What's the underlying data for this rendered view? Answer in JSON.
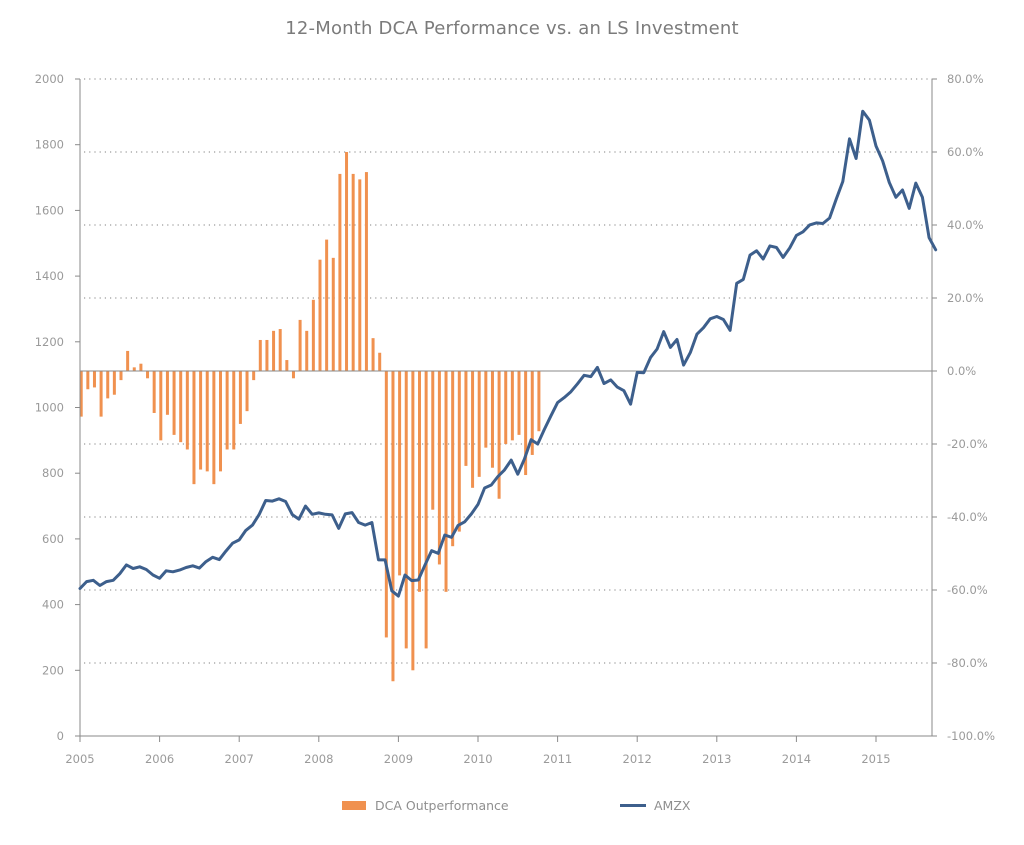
{
  "chart_data": {
    "type": "bar+line",
    "title": "12-Month DCA Performance vs. an LS Investment",
    "xlabel": "",
    "ylabel_left": "",
    "ylabel_right": "",
    "x_ticks": [
      "2005",
      "2006",
      "2007",
      "2008",
      "2009",
      "2010",
      "2011",
      "2012",
      "2013",
      "2014",
      "2015"
    ],
    "x_range": [
      2005.0,
      2015.75
    ],
    "left_axis": {
      "range": [
        0,
        2000
      ],
      "ticks": [
        "0",
        "200",
        "400",
        "600",
        "800",
        "1000",
        "1200",
        "1400",
        "1600",
        "1800",
        "2000"
      ]
    },
    "right_axis": {
      "range": [
        -100,
        80
      ],
      "ticks": [
        "-100.0%",
        "-80.0%",
        "-60.0%",
        "-40.0%",
        "-20.0%",
        "0.0%",
        "20.0%",
        "40.0%",
        "60.0%",
        "80.0%"
      ]
    },
    "grid": "horizontal dotted, aligned to right axis",
    "legend_position": "bottom-center",
    "colors": {
      "bars": "#f0914f",
      "line": "#3d5f8c",
      "axis": "#8a8a8a",
      "grid": "#9a9a9a"
    },
    "series": [
      {
        "name": "DCA Outperformance",
        "type": "bar",
        "axis": "right",
        "start": 2005.0,
        "step_months": 1,
        "values": [
          -12.5,
          -5,
          -4.5,
          -12.5,
          -7.5,
          -6.5,
          -2.5,
          5.5,
          1,
          2,
          -2,
          -11.5,
          -19,
          -12,
          -17.5,
          -19.5,
          -21.5,
          -31,
          -27,
          -27.5,
          -31,
          -27.5,
          -21.5,
          -21.5,
          -14.5,
          -11,
          -2.5,
          8.5,
          8.5,
          11,
          11.5,
          3,
          -2,
          14,
          11,
          19.5,
          30.5,
          36,
          31,
          54,
          60,
          54,
          52.5,
          54.5,
          9,
          5,
          -73,
          -85,
          -56,
          -76,
          -82,
          -60.5,
          -76,
          -38,
          -53,
          -60.5,
          -48,
          -44,
          -26,
          -32,
          -29,
          -21,
          -26.5,
          -35,
          -20,
          -19,
          -17.5,
          -28.5,
          -23,
          -16.5
        ]
      },
      {
        "name": "AMZX",
        "type": "line",
        "axis": "left",
        "start": 2005.0,
        "step_months": 1,
        "values": [
          449,
          470,
          474,
          458,
          470,
          474,
          494,
          521,
          510,
          515,
          507,
          490,
          480,
          503,
          500,
          505,
          513,
          518,
          511,
          531,
          544,
          537,
          563,
          587,
          597,
          626,
          642,
          674,
          717,
          715,
          722,
          714,
          674,
          660,
          700,
          675,
          679,
          675,
          673,
          632,
          676,
          680,
          650,
          642,
          650,
          536,
          536,
          442,
          426,
          490,
          473,
          475,
          520,
          564,
          556,
          612,
          605,
          641,
          652,
          676,
          705,
          755,
          764,
          790,
          810,
          840,
          797,
          843,
          902,
          889,
          933,
          975,
          1015,
          1030,
          1048,
          1072,
          1098,
          1094,
          1122,
          1073,
          1084,
          1062,
          1051,
          1010,
          1107,
          1106,
          1152,
          1178,
          1231,
          1183,
          1207,
          1129,
          1167,
          1223,
          1243,
          1270,
          1277,
          1268,
          1235,
          1378,
          1390,
          1464,
          1477,
          1452,
          1492,
          1487,
          1457,
          1486,
          1524,
          1535,
          1556,
          1562,
          1560,
          1577,
          1634,
          1688,
          1818,
          1758,
          1902,
          1875,
          1796,
          1751,
          1685,
          1640,
          1662,
          1606,
          1683,
          1640,
          1517,
          1480
        ]
      }
    ]
  },
  "legend": {
    "items": [
      {
        "label": "DCA Outperformance",
        "kind": "bar"
      },
      {
        "label": "AMZX",
        "kind": "line"
      }
    ]
  }
}
